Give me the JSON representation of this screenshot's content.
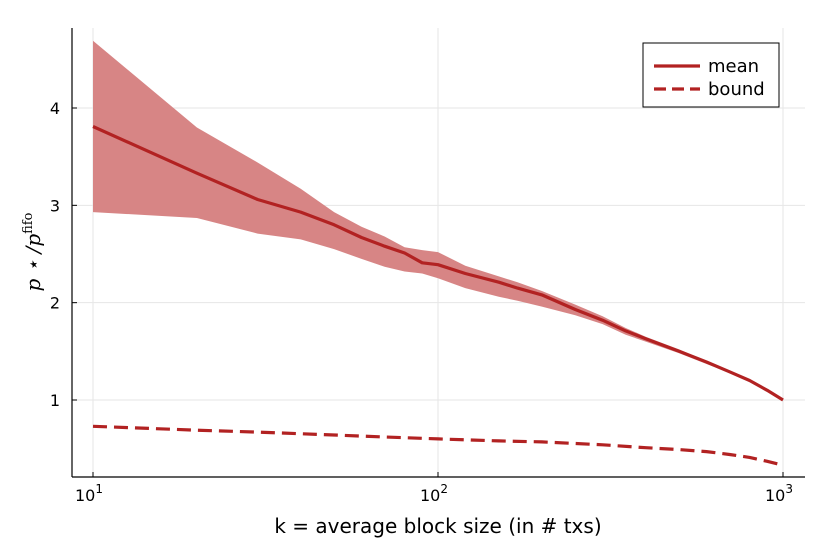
{
  "chart_data": {
    "type": "line",
    "x_scale": "log",
    "xlim": [
      10,
      1000
    ],
    "ylim": [
      0.2,
      4.85
    ],
    "xlabel": "k = average block size (in # txs)",
    "ylabel": "p ⋆ / p^fifo",
    "ylabel_parts": {
      "main": "p ⋆ /p",
      "sup": "fifo"
    },
    "xticks": [
      10,
      100,
      1000
    ],
    "xtick_labels": [
      {
        "base": "10",
        "exp": "1"
      },
      {
        "base": "10",
        "exp": "2"
      },
      {
        "base": "10",
        "exp": "3"
      }
    ],
    "yticks": [
      1,
      2,
      3,
      4
    ],
    "ytick_labels": [
      "1",
      "2",
      "3",
      "4"
    ],
    "grid": true,
    "legend_position": "top-right",
    "color": "#b22222",
    "band_color": "#d78585",
    "series": [
      {
        "name": "mean",
        "style": "solid",
        "x": [
          10,
          20,
          30,
          40,
          50,
          60,
          70,
          80,
          90,
          100,
          120,
          150,
          170,
          200,
          250,
          300,
          350,
          400,
          500,
          600,
          700,
          800,
          900,
          1000
        ],
        "values": [
          3.81,
          3.33,
          3.06,
          2.93,
          2.8,
          2.67,
          2.58,
          2.51,
          2.41,
          2.39,
          2.3,
          2.21,
          2.15,
          2.08,
          1.93,
          1.82,
          1.71,
          1.63,
          1.5,
          1.39,
          1.29,
          1.2,
          1.1,
          1.0
        ]
      },
      {
        "name": "bound",
        "style": "dashed",
        "x": [
          10,
          20,
          30,
          50,
          70,
          100,
          150,
          200,
          300,
          400,
          500,
          600,
          700,
          800,
          900,
          1000
        ],
        "values": [
          0.73,
          0.69,
          0.67,
          0.64,
          0.62,
          0.6,
          0.58,
          0.57,
          0.54,
          0.51,
          0.49,
          0.47,
          0.44,
          0.41,
          0.37,
          0.33
        ]
      }
    ],
    "band": {
      "x": [
        10,
        20,
        30,
        40,
        50,
        60,
        70,
        80,
        90,
        100,
        120,
        150,
        170,
        200,
        250,
        300,
        350,
        400,
        500,
        600,
        700,
        800,
        900,
        1000
      ],
      "upper": [
        4.69,
        3.8,
        3.44,
        3.17,
        2.93,
        2.78,
        2.68,
        2.57,
        2.54,
        2.52,
        2.38,
        2.27,
        2.21,
        2.12,
        1.98,
        1.86,
        1.74,
        1.65,
        1.52,
        1.4,
        1.3,
        1.2,
        1.1,
        1.0
      ],
      "lower": [
        2.93,
        2.87,
        2.71,
        2.65,
        2.55,
        2.45,
        2.37,
        2.32,
        2.3,
        2.25,
        2.15,
        2.06,
        2.02,
        1.96,
        1.87,
        1.78,
        1.67,
        1.6,
        1.48,
        1.37,
        1.28,
        1.19,
        1.1,
        1.0
      ]
    }
  }
}
